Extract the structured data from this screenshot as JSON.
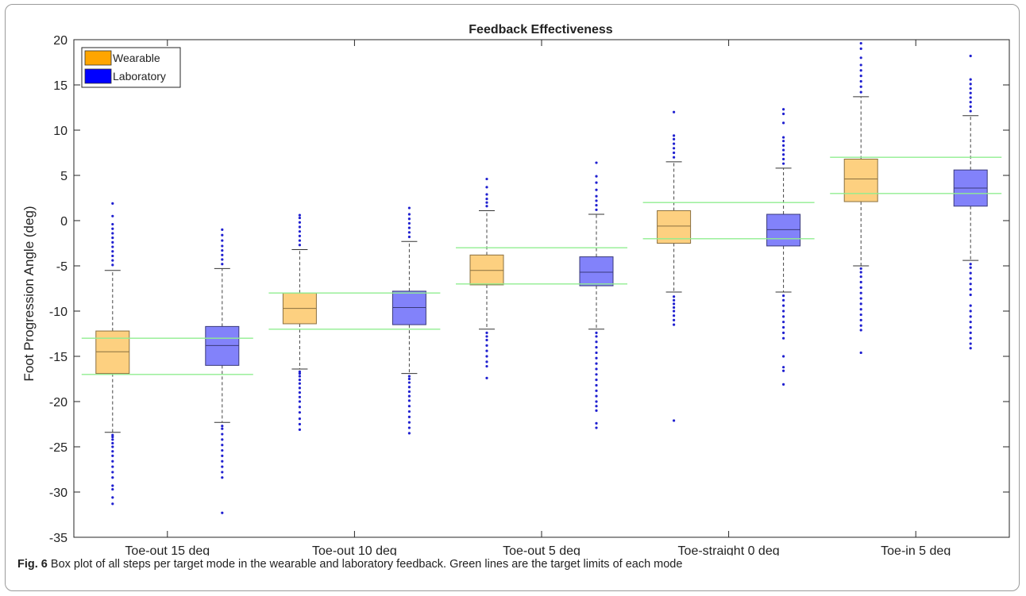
{
  "caption": {
    "label": "Fig. 6",
    "text": "Box plot of all steps per target mode in the wearable and laboratory feedback. Green lines are the target limits of each mode"
  },
  "chart_data": {
    "type": "box",
    "title": "Feedback Effectiveness",
    "xlabel": "",
    "ylabel": "Foot Progression Angle (deg)",
    "ylim": [
      -35,
      20
    ],
    "yticks": [
      20,
      15,
      10,
      5,
      0,
      -5,
      -10,
      -15,
      -20,
      -25,
      -30,
      -35
    ],
    "grid": false,
    "legend_position": "top-left",
    "categories": [
      "Toe-out 15 deg",
      "Toe-out 10 deg",
      "Toe-out 5 deg",
      "Toe-straight 0 deg",
      "Toe-in 5 deg"
    ],
    "series": [
      {
        "name": "Wearable",
        "fill": "#fdd080",
        "legend_color": "#ffa500",
        "edge": "#8a7040",
        "boxes": [
          {
            "q1": -16.9,
            "median": -14.5,
            "q3": -12.2,
            "whisker_low": -23.4,
            "whisker_high": -5.5,
            "outliers": [
              -31.3,
              -30.6,
              -29.7,
              -29.3,
              -28.4,
              -27.8,
              -27.2,
              -26.6,
              -26.0,
              -25.5,
              -25.0,
              -24.6,
              -24.2,
              -23.9,
              -23.7,
              -4.9,
              -4.4,
              -3.9,
              -3.4,
              -2.9,
              -2.4,
              -1.9,
              -1.4,
              -0.9,
              -0.4,
              0.5,
              1.9
            ]
          },
          {
            "q1": -11.4,
            "median": -9.7,
            "q3": -8.0,
            "whisker_low": -16.4,
            "whisker_high": -3.2,
            "outliers": [
              -23.1,
              -22.5,
              -21.9,
              -21.2,
              -20.6,
              -20.0,
              -19.5,
              -19.0,
              -18.5,
              -18.0,
              -17.6,
              -17.2,
              -16.9,
              -16.7,
              -2.7,
              -2.2,
              -1.7,
              -1.2,
              -0.7,
              -0.2,
              0.3,
              0.6
            ]
          },
          {
            "q1": -7.1,
            "median": -5.5,
            "q3": -3.8,
            "whisker_low": -12.0,
            "whisker_high": 1.1,
            "outliers": [
              -17.4,
              -16.1,
              -15.6,
              -15.0,
              -14.4,
              -13.8,
              -13.2,
              -12.8,
              -12.4,
              1.6,
              2.0,
              2.4,
              2.9,
              3.7,
              4.6
            ]
          },
          {
            "q1": -2.5,
            "median": -0.6,
            "q3": 1.1,
            "whisker_low": -7.9,
            "whisker_high": 6.5,
            "outliers": [
              -22.1,
              -11.5,
              -11.0,
              -10.5,
              -10.0,
              -9.6,
              -9.2,
              -8.8,
              -8.4,
              7.0,
              7.5,
              8.0,
              8.5,
              9.0,
              9.4,
              12.0
            ]
          },
          {
            "q1": 2.1,
            "median": 4.6,
            "q3": 6.8,
            "whisker_low": -5.0,
            "whisker_high": 13.7,
            "outliers": [
              -14.6,
              -12.1,
              -11.6,
              -11.0,
              -10.4,
              -9.8,
              -9.2,
              -8.6,
              -8.0,
              -7.4,
              -6.8,
              -6.2,
              -5.7,
              -5.3,
              14.2,
              14.8,
              15.4,
              16.0,
              16.6,
              17.2,
              18.0,
              19.0,
              19.6
            ]
          }
        ]
      },
      {
        "name": "Laboratory",
        "fill": "#8282fa",
        "legend_color": "#0000ff",
        "edge": "#3a3a7a",
        "boxes": [
          {
            "q1": -16.0,
            "median": -13.8,
            "q3": -11.7,
            "whisker_low": -22.3,
            "whisker_high": -5.3,
            "outliers": [
              -32.3,
              -28.4,
              -27.8,
              -27.2,
              -26.6,
              -26.0,
              -25.4,
              -24.8,
              -24.2,
              -23.6,
              -23.0,
              -22.7,
              -4.8,
              -4.3,
              -3.8,
              -3.3,
              -2.8,
              -2.2,
              -1.6,
              -1.0
            ]
          },
          {
            "q1": -11.5,
            "median": -9.6,
            "q3": -7.8,
            "whisker_low": -16.9,
            "whisker_high": -2.3,
            "outliers": [
              -23.5,
              -22.9,
              -22.3,
              -21.7,
              -21.1,
              -20.5,
              -19.9,
              -19.4,
              -18.9,
              -18.4,
              -17.9,
              -17.5,
              -17.2,
              -1.8,
              -1.3,
              -0.8,
              -0.3,
              0.2,
              0.7,
              1.4
            ]
          },
          {
            "q1": -7.2,
            "median": -5.7,
            "q3": -4.0,
            "whisker_low": -12.0,
            "whisker_high": 0.7,
            "outliers": [
              -22.9,
              -22.4,
              -21.0,
              -20.5,
              -20.0,
              -19.4,
              -18.8,
              -18.2,
              -17.6,
              -17.0,
              -16.4,
              -15.8,
              -15.2,
              -14.6,
              -14.0,
              -13.4,
              -12.8,
              -12.4,
              1.2,
              1.7,
              2.2,
              2.7,
              3.4,
              4.2,
              4.9,
              6.4
            ]
          },
          {
            "q1": -2.8,
            "median": -1.0,
            "q3": 0.7,
            "whisker_low": -7.9,
            "whisker_high": 5.8,
            "outliers": [
              -18.1,
              -16.6,
              -16.2,
              -15.0,
              -13.0,
              -12.4,
              -11.8,
              -11.2,
              -10.6,
              -10.0,
              -9.4,
              -8.8,
              -8.3,
              6.3,
              6.8,
              7.3,
              7.8,
              8.3,
              8.8,
              9.2,
              10.8,
              11.8,
              12.3
            ]
          },
          {
            "q1": 1.6,
            "median": 3.6,
            "q3": 5.6,
            "whisker_low": -4.4,
            "whisker_high": 11.6,
            "outliers": [
              -14.1,
              -13.6,
              -13.0,
              -12.4,
              -11.8,
              -11.2,
              -10.6,
              -10.0,
              -9.4,
              -8.2,
              -7.6,
              -7.0,
              -6.4,
              -5.8,
              -5.2,
              -4.8,
              12.1,
              12.6,
              13.1,
              13.6,
              14.1,
              14.6,
              15.1,
              15.6,
              18.2
            ]
          }
        ]
      }
    ],
    "target_limits": [
      {
        "lower": -17.0,
        "upper": -13.0
      },
      {
        "lower": -12.0,
        "upper": -8.0
      },
      {
        "lower": -7.0,
        "upper": -3.0
      },
      {
        "lower": -2.0,
        "upper": 2.0
      },
      {
        "lower": 3.0,
        "upper": 7.0
      }
    ],
    "target_line_color": "#90ee90",
    "outlier_color": "#2020d0"
  }
}
